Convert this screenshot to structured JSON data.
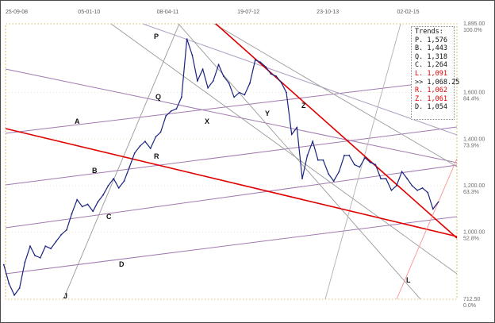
{
  "chart_data": {
    "type": "line",
    "x_ticks": [
      "25-09-08",
      "05-01-10",
      "08-04-11",
      "19-07-12",
      "23-10-13",
      "02-02-15"
    ],
    "y_ticks": [
      {
        "price": "1,895.00",
        "pct": "100.0%"
      },
      {
        "price": "1,600.00",
        "pct": "84.4%"
      },
      {
        "price": "1,400.00",
        "pct": "73.9%"
      },
      {
        "price": "1,200.00",
        "pct": "63.3%"
      },
      {
        "price": "1,000.00",
        "pct": "52.8%"
      },
      {
        "price": "712.50",
        "pct": "0.0%"
      }
    ],
    "ylim": [
      712.5,
      1895
    ],
    "xlim": [
      "2008-09-25",
      "2015-12-01"
    ],
    "grid": true,
    "legend": {
      "title": "Trends:",
      "items": [
        {
          "label": "P.",
          "value": "1,576",
          "color": "#111111"
        },
        {
          "label": "B.",
          "value": "1,443",
          "color": "#111111"
        },
        {
          "label": "Q.",
          "value": "1,318",
          "color": "#111111"
        },
        {
          "label": "C.",
          "value": "1,264",
          "color": "#111111"
        },
        {
          "label": "L.",
          "value": "1,091",
          "color": "#e00000"
        },
        {
          "label": ">>",
          "value": "1,068.25",
          "color": "#111111"
        },
        {
          "label": "R.",
          "value": "1,062",
          "color": "#e00000"
        },
        {
          "label": "Z.",
          "value": "1,061",
          "color": "#e00000"
        },
        {
          "label": "D.",
          "value": "1,054",
          "color": "#111111"
        }
      ]
    },
    "trendline_labels": [
      {
        "text": "P",
        "color": "#111111"
      },
      {
        "text": "Q",
        "color": "#111111"
      },
      {
        "text": "A",
        "color": "#111111"
      },
      {
        "text": "B",
        "color": "#111111"
      },
      {
        "text": "C",
        "color": "#111111"
      },
      {
        "text": "D",
        "color": "#111111"
      },
      {
        "text": "X",
        "color": "#111111"
      },
      {
        "text": "Y",
        "color": "#111111"
      },
      {
        "text": "J",
        "color": "#111111"
      },
      {
        "text": "R",
        "color": "#e00000"
      },
      {
        "text": "Z",
        "color": "#e00000"
      },
      {
        "text": "L",
        "color": "#e00000"
      }
    ],
    "series": [
      {
        "color": "#1a237e",
        "x": [
          "2008-09",
          "2008-10",
          "2008-11",
          "2008-12",
          "2009-01",
          "2009-02",
          "2009-03",
          "2009-04",
          "2009-05",
          "2009-06",
          "2009-07",
          "2009-08",
          "2009-09",
          "2009-10",
          "2009-11",
          "2009-12",
          "2010-01",
          "2010-02",
          "2010-03",
          "2010-04",
          "2010-05",
          "2010-06",
          "2010-07",
          "2010-08",
          "2010-09",
          "2010-10",
          "2010-11",
          "2010-12",
          "2011-01",
          "2011-02",
          "2011-03",
          "2011-04",
          "2011-05",
          "2011-06",
          "2011-07",
          "2011-08",
          "2011-09",
          "2011-10",
          "2011-11",
          "2011-12",
          "2012-01",
          "2012-02",
          "2012-03",
          "2012-04",
          "2012-05",
          "2012-06",
          "2012-07",
          "2012-08",
          "2012-09",
          "2012-10",
          "2012-11",
          "2012-12",
          "2013-01",
          "2013-02",
          "2013-03",
          "2013-04",
          "2013-05",
          "2013-06",
          "2013-07",
          "2013-08",
          "2013-09",
          "2013-10",
          "2013-11",
          "2013-12",
          "2014-01",
          "2014-02",
          "2014-03",
          "2014-04",
          "2014-05",
          "2014-06",
          "2014-07",
          "2014-08",
          "2014-09",
          "2014-10",
          "2014-11",
          "2014-12",
          "2015-01",
          "2015-02",
          "2015-03",
          "2015-04",
          "2015-05",
          "2015-06",
          "2015-07",
          "2015-08"
        ],
        "values": [
          860,
          780,
          730,
          760,
          870,
          940,
          900,
          890,
          940,
          930,
          960,
          990,
          1010,
          1080,
          1140,
          1110,
          1120,
          1090,
          1130,
          1160,
          1200,
          1230,
          1190,
          1220,
          1280,
          1340,
          1370,
          1390,
          1360,
          1410,
          1430,
          1500,
          1520,
          1530,
          1580,
          1830,
          1760,
          1650,
          1700,
          1620,
          1650,
          1720,
          1670,
          1640,
          1580,
          1600,
          1590,
          1640,
          1740,
          1730,
          1710,
          1680,
          1670,
          1640,
          1600,
          1420,
          1450,
          1230,
          1330,
          1390,
          1310,
          1310,
          1250,
          1220,
          1260,
          1330,
          1330,
          1290,
          1280,
          1320,
          1300,
          1290,
          1230,
          1230,
          1180,
          1200,
          1260,
          1230,
          1200,
          1180,
          1190,
          1170,
          1100,
          1130
        ]
      }
    ]
  }
}
